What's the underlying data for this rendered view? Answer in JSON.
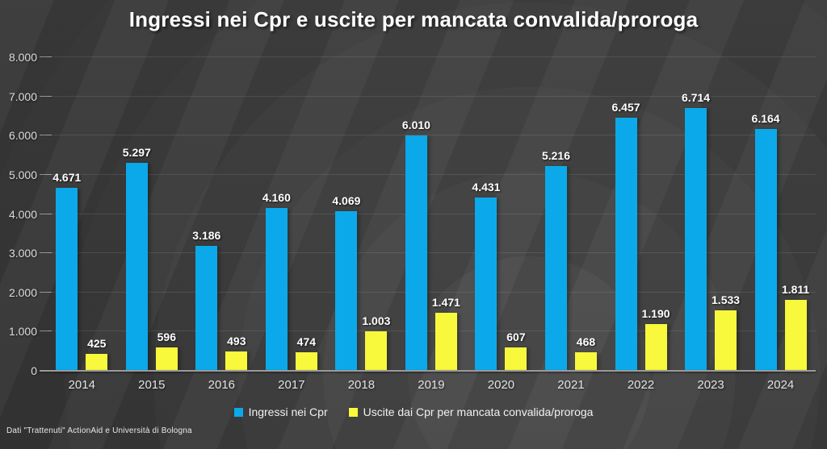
{
  "title": "Ingressi nei Cpr e uscite per mancata convalida/proroga",
  "source": "Dati \"Trattenuti\" ActionAid e Università di Bologna",
  "colors": {
    "blue": "#0ba9e9",
    "yellow": "#f8f83c",
    "background": "#3a3a3a"
  },
  "chart_data": {
    "type": "bar",
    "title": "Ingressi nei Cpr e uscite per mancata convalida/proroga",
    "categories": [
      "2014",
      "2015",
      "2016",
      "2017",
      "2018",
      "2019",
      "2020",
      "2021",
      "2022",
      "2023",
      "2024"
    ],
    "series": [
      {
        "key": "ingressi",
        "name": "Ingressi nei Cpr",
        "color_key": "blue",
        "values": [
          4671,
          5297,
          3186,
          4160,
          4069,
          6010,
          4431,
          5216,
          6457,
          6714,
          6164
        ],
        "labels": [
          "4.671",
          "5.297",
          "3.186",
          "4.160",
          "4.069",
          "6.010",
          "4.431",
          "5.216",
          "6.457",
          "6.714",
          "6.164"
        ]
      },
      {
        "key": "uscite",
        "name": "Uscite dai Cpr per mancata convalida/proroga",
        "color_key": "yellow",
        "values": [
          425,
          596,
          493,
          474,
          1003,
          1471,
          607,
          468,
          1190,
          1533,
          1811
        ],
        "labels": [
          "425",
          "596",
          "493",
          "474",
          "1.003",
          "1.471",
          "607",
          "468",
          "1.190",
          "1.533",
          "1.811"
        ]
      }
    ],
    "y_axis": {
      "min": 0,
      "max": 8000,
      "step": 1000,
      "tick_labels": [
        "0",
        "1.000",
        "2.000",
        "3.000",
        "4.000",
        "5.000",
        "6.000",
        "7.000",
        "8.000"
      ]
    },
    "xlabel": "",
    "ylabel": "",
    "grid": true,
    "legend_position": "bottom"
  }
}
